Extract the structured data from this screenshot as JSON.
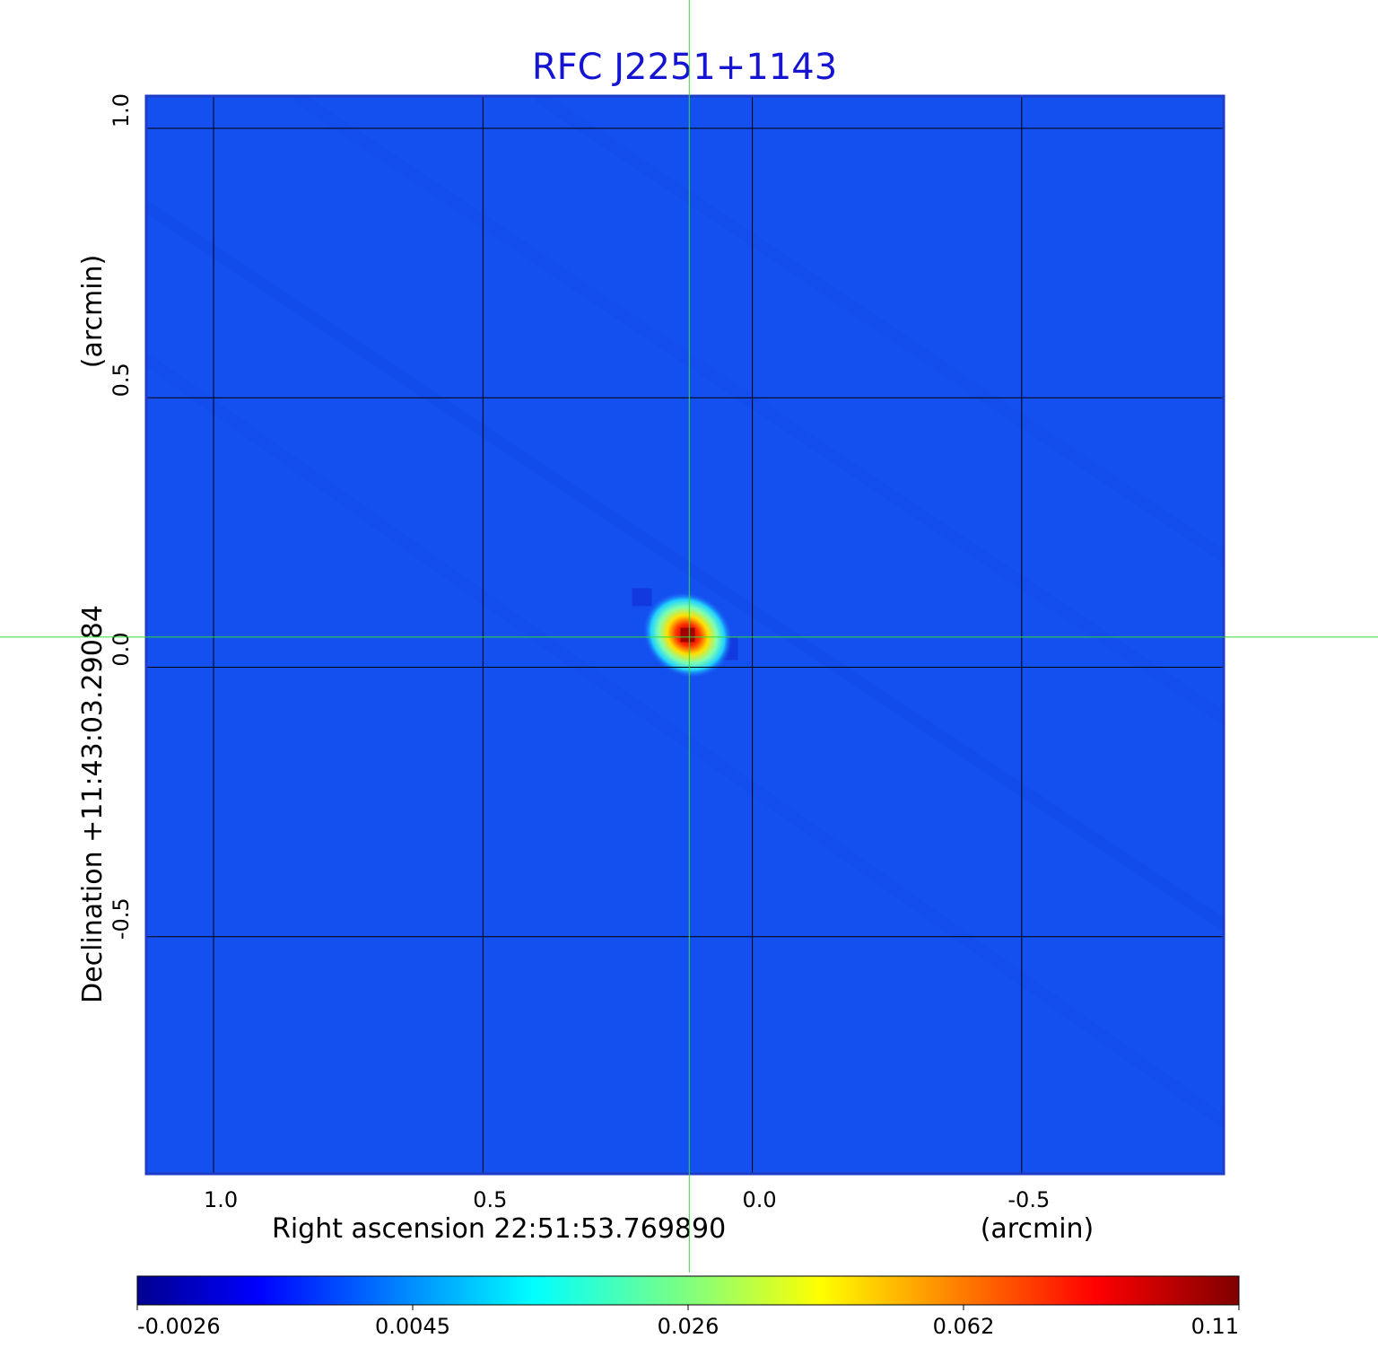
{
  "chart_data": {
    "type": "heatmap",
    "title": "RFC J2251+1143",
    "xlabel": "Right ascension  22:51:53.769890",
    "xunit": "(arcmin)",
    "ylabel": "Declination  +11:43:03.29084",
    "yunit": "(arcmin)",
    "xlim": [
      1.125,
      -0.875
    ],
    "ylim": [
      -0.94,
      1.06
    ],
    "x_ticks": [
      {
        "value": 1.0,
        "label": "1.0"
      },
      {
        "value": 0.5,
        "label": "0.5"
      },
      {
        "value": 0.0,
        "label": "0.0"
      },
      {
        "value": -0.5,
        "label": "-0.5"
      }
    ],
    "y_ticks": [
      {
        "value": 1.0,
        "label": "1.0"
      },
      {
        "value": 0.5,
        "label": "0.5"
      },
      {
        "value": 0.0,
        "label": "0.0"
      },
      {
        "value": -0.5,
        "label": "-0.5"
      }
    ],
    "grid": true,
    "crosshair": {
      "x": 0.117,
      "y": 0.056,
      "color": "#33dd33"
    },
    "source": {
      "x": 0.12,
      "y": 0.06,
      "peak": 0.11
    },
    "colorbar": {
      "colormap": "jet",
      "tick_labels": [
        "-0.0026",
        "0.0045",
        "0.026",
        "0.062",
        "0.11"
      ]
    },
    "colors": {
      "background": "#1450f0",
      "title": "#1414d2",
      "grid": "#000000",
      "frame": "#1e3cc8"
    }
  }
}
